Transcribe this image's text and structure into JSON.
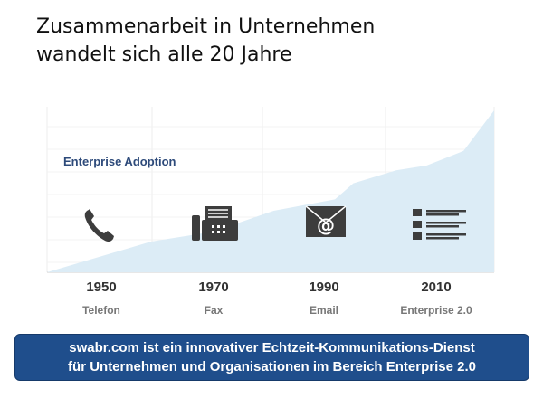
{
  "title": {
    "line1": "Zusammenarbeit in Unternehmen",
    "line2": "wandelt sich alle 20 Jahre"
  },
  "banner": {
    "line1": "swabr.com ist ein innovativer Echtzeit-Kommunikations-Dienst",
    "line2": "für Unternehmen und Organisationen im Bereich Enterprise 2.0"
  },
  "colors": {
    "area_fill": "#dcecf6",
    "banner_bg": "#1f4e8c",
    "icon": "#3d3d3d",
    "series_label": "#2d4a7a"
  },
  "chart_data": {
    "type": "area",
    "series_label": "Enterprise Adoption",
    "grid": true,
    "categories": [
      {
        "year": "1950",
        "label": "Telefon",
        "icon": "telephone-icon"
      },
      {
        "year": "1970",
        "label": "Fax",
        "icon": "fax-icon"
      },
      {
        "year": "1990",
        "label": "Email",
        "icon": "email-icon"
      },
      {
        "year": "2010",
        "label": "Enterprise 2.0",
        "icon": "enterprise-feed-icon"
      }
    ],
    "adoption_curve": [
      {
        "year": 1943,
        "value": 0
      },
      {
        "year": 1960,
        "value": 19
      },
      {
        "year": 1970,
        "value": 25
      },
      {
        "year": 1980,
        "value": 38
      },
      {
        "year": 1990,
        "value": 45
      },
      {
        "year": 1993,
        "value": 55
      },
      {
        "year": 2000,
        "value": 63
      },
      {
        "year": 2005,
        "value": 66
      },
      {
        "year": 2011,
        "value": 75
      },
      {
        "year": 2016,
        "value": 100
      }
    ],
    "xlim": [
      1943,
      2016
    ],
    "ylim": [
      0,
      100
    ]
  }
}
